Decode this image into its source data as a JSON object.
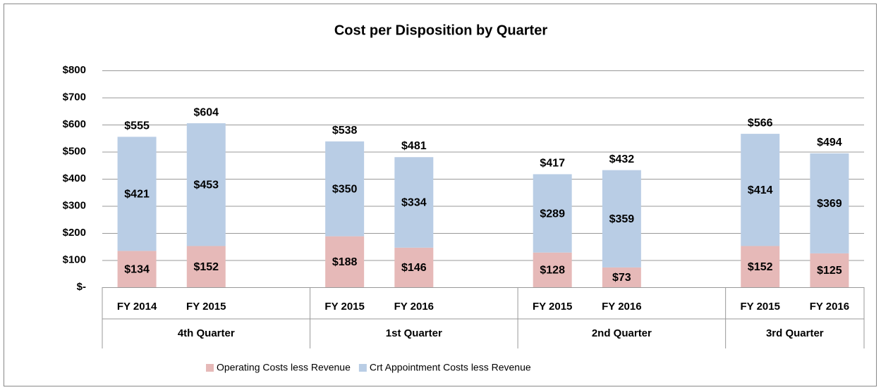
{
  "chart_data": {
    "type": "bar",
    "stacked": true,
    "title": "Cost per Disposition by Quarter",
    "categories": [
      "FY 2014",
      "FY 2015",
      null,
      "FY 2015",
      "FY 2016",
      null,
      "FY 2015",
      "FY 2016",
      null,
      "FY 2015",
      "FY 2016"
    ],
    "groups": [
      "4th Quarter",
      "1st Quarter",
      "2nd Quarter",
      "3rd Quarter"
    ],
    "series": [
      {
        "name": "Operating Costs less Revenue",
        "color": "#e6b9b8",
        "values": [
          134,
          152,
          null,
          188,
          146,
          null,
          128,
          73,
          null,
          152,
          125
        ],
        "value_labels": [
          "$134",
          "$152",
          null,
          "$188",
          "$146",
          null,
          "$128",
          "$73",
          null,
          "$152",
          "$125"
        ]
      },
      {
        "name": "Crt Appointment Costs less Revenue",
        "color": "#b9cde5",
        "values": [
          421,
          453,
          null,
          350,
          334,
          null,
          289,
          359,
          null,
          414,
          369
        ],
        "value_labels": [
          "$421",
          "$453",
          null,
          "$350",
          "$334",
          null,
          "$289",
          "$359",
          null,
          "$414",
          "$369"
        ]
      }
    ],
    "totals": {
      "values": [
        555,
        604,
        null,
        538,
        481,
        null,
        417,
        432,
        null,
        566,
        494
      ],
      "value_labels": [
        "$555",
        "$604",
        null,
        "$538",
        "$481",
        null,
        "$417",
        "$432",
        null,
        "$566",
        "$494"
      ]
    },
    "ylim": [
      0,
      800
    ],
    "yticks": [
      {
        "value": 0,
        "label": "$-"
      },
      {
        "value": 100,
        "label": "$100"
      },
      {
        "value": 200,
        "label": "$200"
      },
      {
        "value": 300,
        "label": "$300"
      },
      {
        "value": 400,
        "label": "$400"
      },
      {
        "value": 500,
        "label": "$500"
      },
      {
        "value": 600,
        "label": "$600"
      },
      {
        "value": 700,
        "label": "$700"
      },
      {
        "value": 800,
        "label": "$800"
      }
    ],
    "grid": true,
    "legend": "bottom"
  }
}
